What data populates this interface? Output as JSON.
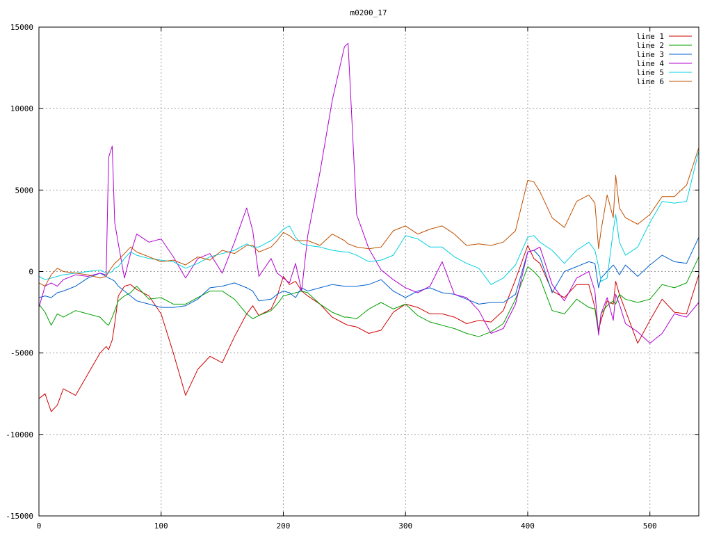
{
  "chart_data": {
    "type": "line",
    "title": "m0200_17",
    "xlabel": "",
    "ylabel": "",
    "xlim": [
      0,
      540
    ],
    "ylim": [
      -15000,
      15000
    ],
    "xticks": [
      "0",
      "100",
      "200",
      "300",
      "400",
      "500"
    ],
    "yticks": [
      "-15000",
      "-10000",
      "-5000",
      "0",
      "5000",
      "10000",
      "15000"
    ],
    "grid": true,
    "legend_position": "top-right",
    "x": [
      0,
      5,
      10,
      15,
      20,
      30,
      40,
      50,
      55,
      57,
      60,
      62,
      65,
      70,
      75,
      80,
      90,
      100,
      110,
      120,
      130,
      140,
      150,
      160,
      170,
      175,
      180,
      190,
      195,
      200,
      205,
      210,
      215,
      220,
      230,
      240,
      250,
      253,
      260,
      270,
      280,
      290,
      300,
      310,
      320,
      330,
      340,
      350,
      360,
      370,
      380,
      390,
      400,
      405,
      410,
      420,
      430,
      440,
      450,
      455,
      458,
      460,
      465,
      470,
      472,
      475,
      480,
      490,
      500,
      510,
      520,
      530,
      540
    ],
    "series": [
      {
        "name": "line 1",
        "color": "#d00000",
        "values": [
          -7800,
          -7500,
          -8600,
          -8200,
          -7200,
          -7600,
          -6300,
          -5000,
          -4600,
          -4800,
          -4200,
          -3200,
          -1500,
          -900,
          -800,
          -1100,
          -1500,
          -2600,
          -5000,
          -7600,
          -6000,
          -5200,
          -5600,
          -4000,
          -2600,
          -2100,
          -2700,
          -2300,
          -1500,
          -300,
          -800,
          -600,
          -1200,
          -1500,
          -2000,
          -2800,
          -3200,
          -3300,
          -3400,
          -3800,
          -3600,
          -2500,
          -2000,
          -2200,
          -2600,
          -2600,
          -2800,
          -3200,
          -3000,
          -3100,
          -2400,
          -500,
          1600,
          800,
          500,
          -1200,
          -1600,
          -800,
          -800,
          -2200,
          -3600,
          -3000,
          -1800,
          -2000,
          -600,
          -1400,
          -2400,
          -4400,
          -3000,
          -1700,
          -2500,
          -2600,
          -200
        ]
      },
      {
        "name": "line 2",
        "color": "#00a000",
        "values": [
          -2000,
          -2500,
          -3300,
          -2600,
          -2800,
          -2400,
          -2600,
          -2800,
          -3200,
          -3300,
          -2800,
          -2400,
          -1800,
          -1500,
          -1300,
          -900,
          -1700,
          -1600,
          -2000,
          -2000,
          -1600,
          -1200,
          -1200,
          -1700,
          -2600,
          -2900,
          -2700,
          -2400,
          -2000,
          -1500,
          -1400,
          -1300,
          -1200,
          -1300,
          -2000,
          -2500,
          -2800,
          -2800,
          -2900,
          -2300,
          -1900,
          -2300,
          -2000,
          -2700,
          -3100,
          -3300,
          -3500,
          -3800,
          -4000,
          -3700,
          -3200,
          -1700,
          300,
          0,
          -400,
          -2400,
          -2600,
          -1700,
          -2200,
          -2300,
          -3800,
          -2600,
          -2100,
          -1800,
          -2000,
          -1400,
          -1700,
          -1900,
          -1700,
          -800,
          -1000,
          -700,
          900
        ]
      },
      {
        "name": "line 3",
        "color": "#0060d0",
        "values": [
          -1600,
          -1500,
          -1600,
          -1300,
          -1200,
          -900,
          -400,
          -100,
          -300,
          -400,
          -500,
          -600,
          -900,
          -1200,
          -1500,
          -1800,
          -2000,
          -2200,
          -2200,
          -2100,
          -1700,
          -1000,
          -900,
          -700,
          -1000,
          -1200,
          -1800,
          -1700,
          -1400,
          -1200,
          -1300,
          -1600,
          -1000,
          -1200,
          -1000,
          -800,
          -900,
          -900,
          -900,
          -800,
          -500,
          -1200,
          -1600,
          -1200,
          -1000,
          -1300,
          -1400,
          -1700,
          -2000,
          -1900,
          -1900,
          -1400,
          1200,
          1300,
          900,
          -1300,
          0,
          300,
          600,
          500,
          -1000,
          -400,
          0,
          400,
          200,
          -200,
          400,
          -300,
          400,
          1000,
          600,
          500,
          2100
        ]
      },
      {
        "name": "line 4",
        "color": "#b000d0",
        "values": [
          -2200,
          -900,
          -700,
          -900,
          -500,
          -200,
          -300,
          -100,
          -200,
          7000,
          7700,
          3000,
          1700,
          -400,
          1100,
          2300,
          1800,
          2000,
          900,
          -400,
          800,
          1100,
          -100,
          1800,
          3900,
          2500,
          -300,
          800,
          -100,
          -400,
          -700,
          500,
          -1200,
          2200,
          6100,
          10500,
          13800,
          14000,
          3500,
          1400,
          100,
          -500,
          -1000,
          -1300,
          -900,
          600,
          -1400,
          -1600,
          -2400,
          -3800,
          -3500,
          -2000,
          1200,
          1300,
          1500,
          -800,
          -1800,
          -400,
          0,
          -1200,
          -3900,
          -2600,
          -1600,
          -3000,
          -1400,
          -2000,
          -3200,
          -3700,
          -4400,
          -3800,
          -2600,
          -2800,
          -1900
        ]
      },
      {
        "name": "line 5",
        "color": "#00d0e0",
        "values": [
          -300,
          -500,
          -400,
          -300,
          -200,
          -100,
          0,
          100,
          -100,
          -100,
          0,
          200,
          300,
          800,
          1200,
          1000,
          800,
          700,
          600,
          200,
          500,
          900,
          1100,
          1300,
          1700,
          1500,
          1500,
          1900,
          2200,
          2600,
          2800,
          2100,
          1700,
          1600,
          1500,
          1300,
          1200,
          1200,
          1000,
          600,
          700,
          1000,
          2200,
          2000,
          1500,
          1500,
          900,
          500,
          200,
          -800,
          -400,
          400,
          2100,
          2200,
          1800,
          1300,
          500,
          1300,
          1800,
          1300,
          300,
          -600,
          -400,
          2500,
          3500,
          1800,
          1000,
          1500,
          3000,
          4300,
          4200,
          4300,
          7400
        ]
      },
      {
        "name": "line 6",
        "color": "#c05000",
        "values": [
          -700,
          -900,
          -200,
          200,
          0,
          -100,
          -200,
          -400,
          -300,
          0,
          300,
          500,
          700,
          1100,
          1500,
          1200,
          900,
          600,
          700,
          400,
          900,
          700,
          1300,
          1100,
          1600,
          1600,
          1200,
          1500,
          1900,
          2400,
          2200,
          1900,
          1900,
          1900,
          1600,
          2300,
          1900,
          1700,
          1500,
          1400,
          1500,
          2500,
          2800,
          2300,
          2600,
          2800,
          2300,
          1600,
          1700,
          1600,
          1800,
          2500,
          5600,
          5500,
          4900,
          3300,
          2700,
          4300,
          4700,
          4200,
          1400,
          2500,
          4700,
          3300,
          5900,
          3900,
          3300,
          2900,
          3500,
          4600,
          4600,
          5300,
          7600
        ]
      }
    ]
  }
}
